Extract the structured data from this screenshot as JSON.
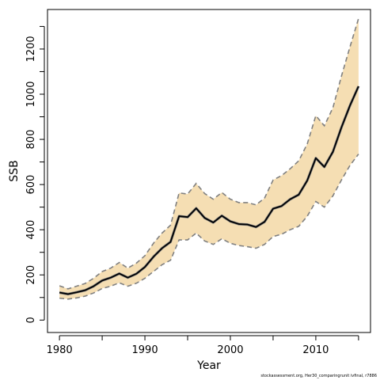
{
  "chart_data": {
    "type": "line",
    "title": "",
    "xlabel": "Year",
    "ylabel": "SSB",
    "xlim": [
      1978.5,
      1976.5
    ],
    "ylim": [
      -55,
      1375
    ],
    "x_ticks": [
      1980,
      1990,
      2000,
      2010
    ],
    "y_ticks": [
      0,
      200,
      400,
      600,
      800,
      1000,
      1200
    ],
    "grid": false,
    "band_fill_color": "#f5deb3",
    "line_color": "#000000",
    "bound_line_color": "#808080",
    "x": [
      1980,
      1981,
      1982,
      1983,
      1984,
      1985,
      1986,
      1987,
      1988,
      1989,
      1990,
      1991,
      1992,
      1993,
      1994,
      1995,
      1996,
      1997,
      1998,
      1999,
      2000,
      2001,
      2002,
      2003,
      2004,
      2005,
      2006,
      2007,
      2008,
      2009,
      2010,
      2011,
      2012,
      2013,
      2014,
      2015
    ],
    "series": [
      {
        "values": [
          122,
          115,
          123,
          132,
          150,
          175,
          188,
          206,
          188,
          205,
          235,
          280,
          318,
          346,
          460,
          456,
          495,
          452,
          432,
          462,
          437,
          425,
          423,
          412,
          435,
          493,
          505,
          535,
          555,
          618,
          717,
          678,
          745,
          853,
          950,
          1035
        ]
      },
      {
        "values": [
          152,
          138,
          150,
          162,
          185,
          215,
          230,
          255,
          230,
          252,
          285,
          340,
          385,
          420,
          563,
          558,
          605,
          560,
          535,
          565,
          535,
          520,
          520,
          510,
          540,
          620,
          640,
          670,
          705,
          780,
          905,
          860,
          940,
          1080,
          1210,
          1335
        ]
      },
      {
        "values": [
          97,
          93,
          98,
          106,
          120,
          140,
          150,
          165,
          150,
          163,
          185,
          215,
          245,
          265,
          355,
          355,
          385,
          350,
          335,
          360,
          340,
          330,
          325,
          318,
          335,
          370,
          380,
          400,
          415,
          460,
          525,
          500,
          550,
          620,
          685,
          735
        ]
      }
    ]
  },
  "footnote": "stockassessment.org, Her30_comparingrunit ivfinal, r7886"
}
